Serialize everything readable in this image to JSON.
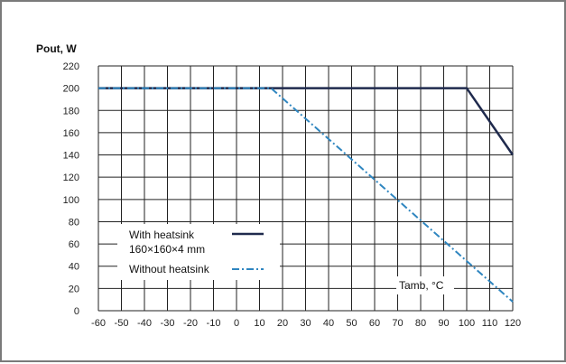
{
  "chart_data": {
    "type": "line",
    "ylabel": "Pout, W",
    "xlabel": "Tamb, °C",
    "xlim": [
      -60,
      120
    ],
    "ylim": [
      0,
      220
    ],
    "x_ticks": [
      -60,
      -50,
      -40,
      -30,
      -20,
      -10,
      0,
      10,
      20,
      30,
      40,
      50,
      60,
      70,
      80,
      90,
      100,
      110,
      120
    ],
    "y_ticks": [
      0,
      20,
      40,
      60,
      80,
      100,
      120,
      140,
      160,
      180,
      200,
      220
    ],
    "grid": true,
    "series": [
      {
        "name": "With heatsink",
        "name_line2": "160×160×4 mm",
        "style": "solid",
        "color": "#1f2a4d",
        "points": [
          [
            -60,
            200
          ],
          [
            100,
            200
          ],
          [
            120,
            140
          ]
        ]
      },
      {
        "name": "Without heatsink",
        "style": "dashdot",
        "color": "#2f86c0",
        "points": [
          [
            -60,
            200
          ],
          [
            15,
            200
          ],
          [
            120,
            8
          ]
        ]
      }
    ]
  }
}
